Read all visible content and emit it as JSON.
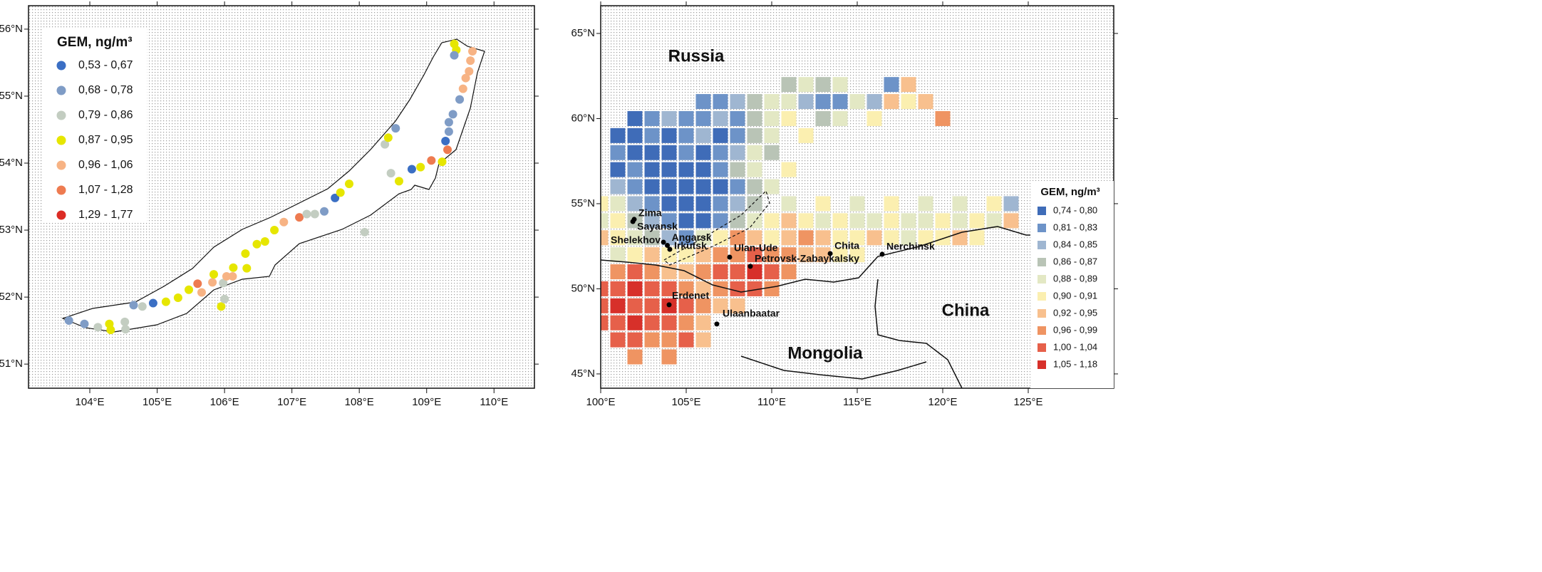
{
  "left_map": {
    "xlim": [
      103.09,
      110.6
    ],
    "ylim": [
      50.64,
      56.35
    ],
    "xticks": [
      {
        "value": 104,
        "label": "104°E"
      },
      {
        "value": 105,
        "label": "105°E"
      },
      {
        "value": 106,
        "label": "106°E"
      },
      {
        "value": 107,
        "label": "107°E"
      },
      {
        "value": 108,
        "label": "108°E"
      },
      {
        "value": 109,
        "label": "109°E"
      },
      {
        "value": 110,
        "label": "110°E"
      }
    ],
    "yticks": [
      {
        "value": 51,
        "label": "51°N"
      },
      {
        "value": 52,
        "label": "52°N"
      },
      {
        "value": 53,
        "label": "53°N"
      },
      {
        "value": 54,
        "label": "54°N"
      },
      {
        "value": 55,
        "label": "55°N"
      },
      {
        "value": 56,
        "label": "56°N"
      }
    ],
    "legend": {
      "title": "GEM, ng/m³",
      "classes": [
        {
          "label": "0,53 - 0,67",
          "color": "#3b6fc4"
        },
        {
          "label": "0,68 - 0,78",
          "color": "#7f9cc6"
        },
        {
          "label": "0,79 - 0,86",
          "color": "#c3cdc1"
        },
        {
          "label": "0,87 - 0,95",
          "color": "#e6e600"
        },
        {
          "label": "0,96 - 1,06",
          "color": "#f7b384"
        },
        {
          "label": "1,07 - 1,28",
          "color": "#ee7b50"
        },
        {
          "label": "1,29 - 1,77",
          "color": "#dc2c25"
        }
      ]
    },
    "points": [
      [
        103.69,
        51.65,
        1
      ],
      [
        103.92,
        51.6,
        1
      ],
      [
        104.12,
        51.55,
        2
      ],
      [
        104.29,
        51.6,
        3
      ],
      [
        104.31,
        51.51,
        3
      ],
      [
        104.52,
        51.63,
        2
      ],
      [
        104.53,
        51.52,
        2
      ],
      [
        104.65,
        51.88,
        1
      ],
      [
        104.78,
        51.86,
        2
      ],
      [
        104.94,
        51.91,
        0
      ],
      [
        105.13,
        51.93,
        3
      ],
      [
        105.31,
        51.99,
        3
      ],
      [
        105.47,
        52.11,
        3
      ],
      [
        105.6,
        52.2,
        5
      ],
      [
        105.66,
        52.07,
        4
      ],
      [
        105.82,
        52.22,
        4
      ],
      [
        105.84,
        52.34,
        3
      ],
      [
        105.98,
        52.21,
        2
      ],
      [
        106.03,
        52.31,
        4
      ],
      [
        105.95,
        51.86,
        3
      ],
      [
        106.0,
        51.97,
        2
      ],
      [
        106.12,
        52.31,
        4
      ],
      [
        106.13,
        52.44,
        3
      ],
      [
        106.33,
        52.43,
        3
      ],
      [
        106.31,
        52.65,
        3
      ],
      [
        106.48,
        52.79,
        3
      ],
      [
        106.6,
        52.83,
        3
      ],
      [
        106.74,
        53.0,
        3
      ],
      [
        106.88,
        53.12,
        4
      ],
      [
        107.11,
        53.19,
        5
      ],
      [
        107.22,
        53.24,
        2
      ],
      [
        107.34,
        53.24,
        2
      ],
      [
        107.48,
        53.28,
        1
      ],
      [
        107.64,
        53.48,
        0
      ],
      [
        107.72,
        53.56,
        3
      ],
      [
        107.85,
        53.69,
        3
      ],
      [
        108.08,
        52.97,
        2
      ],
      [
        108.38,
        54.28,
        2
      ],
      [
        108.43,
        54.38,
        3
      ],
      [
        108.54,
        54.52,
        1
      ],
      [
        108.47,
        53.85,
        2
      ],
      [
        108.59,
        53.73,
        3
      ],
      [
        108.78,
        53.91,
        0
      ],
      [
        108.91,
        53.94,
        3
      ],
      [
        109.07,
        54.04,
        5
      ],
      [
        109.23,
        54.02,
        3
      ],
      [
        109.31,
        54.2,
        5
      ],
      [
        109.28,
        54.33,
        0
      ],
      [
        109.33,
        54.47,
        1
      ],
      [
        109.33,
        54.61,
        1
      ],
      [
        109.39,
        54.73,
        1
      ],
      [
        109.49,
        54.95,
        1
      ],
      [
        109.54,
        55.11,
        4
      ],
      [
        109.58,
        55.27,
        4
      ],
      [
        109.63,
        55.37,
        4
      ],
      [
        109.65,
        55.53,
        4
      ],
      [
        109.68,
        55.67,
        4
      ],
      [
        109.44,
        55.69,
        3
      ],
      [
        109.41,
        55.78,
        3
      ],
      [
        109.41,
        55.61,
        1
      ]
    ]
  },
  "right_map": {
    "xlim": [
      100,
      130
    ],
    "ylim": [
      44.16,
      66.63
    ],
    "xticks": [
      {
        "value": 100,
        "label": "100°E"
      },
      {
        "value": 105,
        "label": "105°E"
      },
      {
        "value": 110,
        "label": "110°E"
      },
      {
        "value": 115,
        "label": "115°E"
      },
      {
        "value": 120,
        "label": "120°E"
      },
      {
        "value": 125,
        "label": "125°E"
      }
    ],
    "yticks": [
      {
        "value": 45,
        "label": "45°N"
      },
      {
        "value": 50,
        "label": "50°N"
      },
      {
        "value": 55,
        "label": "55°N"
      },
      {
        "value": 60,
        "label": "60°N"
      },
      {
        "value": 65,
        "label": "65°N"
      }
    ],
    "regions": [
      "Russia",
      "China",
      "Mongolia"
    ],
    "legend": {
      "title": "GEM, ng/m³",
      "classes": [
        {
          "label": "0,74 - 0,80",
          "color": "#3f6cb8"
        },
        {
          "label": "0,81 - 0,83",
          "color": "#6d93c8"
        },
        {
          "label": "0,84 - 0,85",
          "color": "#9fb6d1"
        },
        {
          "label": "0,86 - 0,87",
          "color": "#b9c4b6"
        },
        {
          "label": "0,88 - 0,89",
          "color": "#e3e8c4"
        },
        {
          "label": "0,90 - 0,91",
          "color": "#fbefb0"
        },
        {
          "label": "0,92 - 0,95",
          "color": "#f8c08e"
        },
        {
          "label": "0,96 - 0,99",
          "color": "#ef9462"
        },
        {
          "label": "1,00 - 1,04",
          "color": "#e6604a"
        },
        {
          "label": "1,05 - 1,18",
          "color": "#d7302a"
        }
      ]
    },
    "cities": [
      {
        "name": "Zima",
        "lon": 101.96,
        "lat": 54.08
      },
      {
        "name": "Sayansk",
        "lon": 101.88,
        "lat": 53.95
      },
      {
        "name": "Shelekhov",
        "lon": 103.67,
        "lat": 52.74
      },
      {
        "name": "Angarsk",
        "lon": 103.9,
        "lat": 52.55
      },
      {
        "name": "Irkutsk",
        "lon": 104.04,
        "lat": 52.32
      },
      {
        "name": "Ulan-Ude",
        "lon": 107.54,
        "lat": 51.86
      },
      {
        "name": "Petrovsk-Zabaykalsky",
        "lon": 108.75,
        "lat": 51.32
      },
      {
        "name": "Chita",
        "lon": 113.42,
        "lat": 52.07
      },
      {
        "name": "Nerchinsk",
        "lon": 116.46,
        "lat": 52.03
      },
      {
        "name": "Erdenet",
        "lon": 104.0,
        "lat": 49.06
      },
      {
        "name": "Ulaanbaatar",
        "lon": 106.79,
        "lat": 47.93
      }
    ],
    "cells": [
      [
        111,
        62,
        3
      ],
      [
        112,
        62,
        4
      ],
      [
        113,
        62,
        3
      ],
      [
        114,
        62,
        4
      ],
      [
        117,
        62,
        1
      ],
      [
        118,
        62,
        6
      ],
      [
        106,
        61,
        1
      ],
      [
        107,
        61,
        1
      ],
      [
        108,
        61,
        2
      ],
      [
        109,
        61,
        3
      ],
      [
        110,
        61,
        4
      ],
      [
        111,
        61,
        4
      ],
      [
        112,
        61,
        2
      ],
      [
        113,
        61,
        1
      ],
      [
        114,
        61,
        1
      ],
      [
        115,
        61,
        4
      ],
      [
        116,
        61,
        2
      ],
      [
        117,
        61,
        6
      ],
      [
        118,
        61,
        5
      ],
      [
        119,
        61,
        6
      ],
      [
        102,
        60,
        0
      ],
      [
        103,
        60,
        1
      ],
      [
        104,
        60,
        2
      ],
      [
        105,
        60,
        1
      ],
      [
        106,
        60,
        1
      ],
      [
        107,
        60,
        2
      ],
      [
        108,
        60,
        1
      ],
      [
        109,
        60,
        3
      ],
      [
        110,
        60,
        4
      ],
      [
        111,
        60,
        5
      ],
      [
        113,
        60,
        3
      ],
      [
        114,
        60,
        4
      ],
      [
        116,
        60,
        5
      ],
      [
        120,
        60,
        7
      ],
      [
        101,
        59,
        0
      ],
      [
        102,
        59,
        0
      ],
      [
        103,
        59,
        1
      ],
      [
        104,
        59,
        0
      ],
      [
        105,
        59,
        1
      ],
      [
        106,
        59,
        2
      ],
      [
        107,
        59,
        0
      ],
      [
        108,
        59,
        1
      ],
      [
        109,
        59,
        3
      ],
      [
        110,
        59,
        4
      ],
      [
        112,
        59,
        5
      ],
      [
        101,
        58,
        1
      ],
      [
        102,
        58,
        0
      ],
      [
        103,
        58,
        0
      ],
      [
        104,
        58,
        0
      ],
      [
        105,
        58,
        1
      ],
      [
        106,
        58,
        0
      ],
      [
        107,
        58,
        1
      ],
      [
        108,
        58,
        2
      ],
      [
        109,
        58,
        4
      ],
      [
        110,
        58,
        3
      ],
      [
        101,
        57,
        0
      ],
      [
        102,
        57,
        1
      ],
      [
        103,
        57,
        0
      ],
      [
        104,
        57,
        0
      ],
      [
        105,
        57,
        0
      ],
      [
        106,
        57,
        0
      ],
      [
        107,
        57,
        1
      ],
      [
        108,
        57,
        3
      ],
      [
        109,
        57,
        4
      ],
      [
        111,
        57,
        5
      ],
      [
        101,
        56,
        2
      ],
      [
        102,
        56,
        1
      ],
      [
        103,
        56,
        0
      ],
      [
        104,
        56,
        0
      ],
      [
        105,
        56,
        0
      ],
      [
        106,
        56,
        0
      ],
      [
        107,
        56,
        0
      ],
      [
        108,
        56,
        1
      ],
      [
        109,
        56,
        3
      ],
      [
        110,
        56,
        4
      ],
      [
        100,
        55,
        5
      ],
      [
        101,
        55,
        4
      ],
      [
        102,
        55,
        2
      ],
      [
        103,
        55,
        1
      ],
      [
        104,
        55,
        0
      ],
      [
        105,
        55,
        0
      ],
      [
        106,
        55,
        0
      ],
      [
        107,
        55,
        1
      ],
      [
        108,
        55,
        2
      ],
      [
        109,
        55,
        3
      ],
      [
        111,
        55,
        4
      ],
      [
        113,
        55,
        5
      ],
      [
        115,
        55,
        4
      ],
      [
        117,
        55,
        5
      ],
      [
        119,
        55,
        4
      ],
      [
        121,
        55,
        4
      ],
      [
        123,
        55,
        5
      ],
      [
        124,
        55,
        2
      ],
      [
        100,
        54,
        4
      ],
      [
        101,
        54,
        5
      ],
      [
        102,
        54,
        3
      ],
      [
        103,
        54,
        2
      ],
      [
        104,
        54,
        1
      ],
      [
        105,
        54,
        0
      ],
      [
        106,
        54,
        0
      ],
      [
        107,
        54,
        1
      ],
      [
        108,
        54,
        3
      ],
      [
        109,
        54,
        4
      ],
      [
        110,
        54,
        5
      ],
      [
        111,
        54,
        6
      ],
      [
        112,
        54,
        5
      ],
      [
        113,
        54,
        4
      ],
      [
        114,
        54,
        5
      ],
      [
        115,
        54,
        4
      ],
      [
        116,
        54,
        4
      ],
      [
        117,
        54,
        5
      ],
      [
        118,
        54,
        4
      ],
      [
        119,
        54,
        4
      ],
      [
        120,
        54,
        5
      ],
      [
        121,
        54,
        4
      ],
      [
        122,
        54,
        5
      ],
      [
        123,
        54,
        4
      ],
      [
        124,
        54,
        6
      ],
      [
        100,
        53,
        6
      ],
      [
        101,
        53,
        5
      ],
      [
        102,
        53,
        4
      ],
      [
        103,
        53,
        3
      ],
      [
        104,
        53,
        2
      ],
      [
        105,
        53,
        1
      ],
      [
        106,
        53,
        4
      ],
      [
        107,
        53,
        5
      ],
      [
        108,
        53,
        7
      ],
      [
        109,
        53,
        6
      ],
      [
        110,
        53,
        5
      ],
      [
        111,
        53,
        6
      ],
      [
        112,
        53,
        7
      ],
      [
        113,
        53,
        6
      ],
      [
        114,
        53,
        5
      ],
      [
        115,
        53,
        5
      ],
      [
        116,
        53,
        6
      ],
      [
        117,
        53,
        5
      ],
      [
        118,
        53,
        4
      ],
      [
        119,
        53,
        5
      ],
      [
        120,
        53,
        5
      ],
      [
        121,
        53,
        6
      ],
      [
        122,
        53,
        5
      ],
      [
        101,
        52,
        4
      ],
      [
        102,
        52,
        5
      ],
      [
        103,
        52,
        6
      ],
      [
        104,
        52,
        5
      ],
      [
        105,
        52,
        5
      ],
      [
        106,
        52,
        6
      ],
      [
        107,
        52,
        7
      ],
      [
        108,
        52,
        7
      ],
      [
        109,
        52,
        8
      ],
      [
        110,
        52,
        7
      ],
      [
        111,
        52,
        7
      ],
      [
        112,
        52,
        6
      ],
      [
        113,
        52,
        6
      ],
      [
        114,
        52,
        5
      ],
      [
        115,
        52,
        5
      ],
      [
        101,
        51,
        7
      ],
      [
        102,
        51,
        8
      ],
      [
        103,
        51,
        7
      ],
      [
        104,
        51,
        6
      ],
      [
        105,
        51,
        6
      ],
      [
        106,
        51,
        7
      ],
      [
        107,
        51,
        8
      ],
      [
        108,
        51,
        8
      ],
      [
        109,
        51,
        9
      ],
      [
        110,
        51,
        8
      ],
      [
        111,
        51,
        7
      ],
      [
        100,
        50,
        8
      ],
      [
        101,
        50,
        8
      ],
      [
        102,
        50,
        9
      ],
      [
        103,
        50,
        8
      ],
      [
        104,
        50,
        8
      ],
      [
        105,
        50,
        7
      ],
      [
        106,
        50,
        6
      ],
      [
        107,
        50,
        7
      ],
      [
        108,
        50,
        8
      ],
      [
        109,
        50,
        8
      ],
      [
        110,
        50,
        7
      ],
      [
        100,
        49,
        8
      ],
      [
        101,
        49,
        9
      ],
      [
        102,
        49,
        8
      ],
      [
        103,
        49,
        8
      ],
      [
        104,
        49,
        9
      ],
      [
        105,
        49,
        8
      ],
      [
        106,
        49,
        7
      ],
      [
        107,
        49,
        6
      ],
      [
        108,
        49,
        6
      ],
      [
        100,
        48,
        8
      ],
      [
        101,
        48,
        8
      ],
      [
        102,
        48,
        9
      ],
      [
        103,
        48,
        8
      ],
      [
        104,
        48,
        8
      ],
      [
        105,
        48,
        7
      ],
      [
        106,
        48,
        6
      ],
      [
        101,
        47,
        8
      ],
      [
        102,
        47,
        8
      ],
      [
        103,
        47,
        7
      ],
      [
        104,
        47,
        7
      ],
      [
        105,
        47,
        8
      ],
      [
        106,
        47,
        6
      ],
      [
        102,
        46,
        7
      ],
      [
        104,
        46,
        7
      ]
    ]
  }
}
